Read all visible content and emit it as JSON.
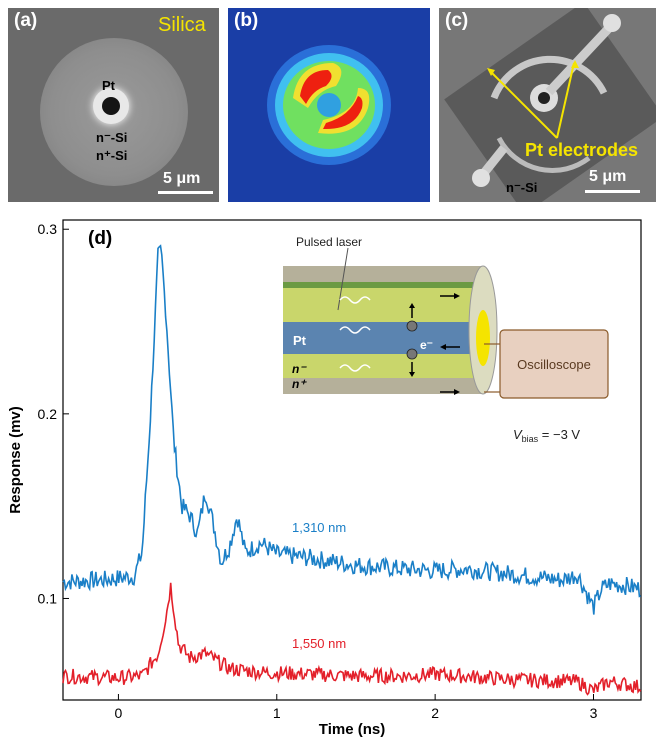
{
  "panels": {
    "a": {
      "label": "(a)",
      "material": "Silica",
      "metal": "Pt",
      "layer1": "n⁻-Si",
      "layer2": "n⁺-Si",
      "scale": "5 μm"
    },
    "b": {
      "label": "(b)"
    },
    "c": {
      "label": "(c)",
      "annotation": "Pt electrodes",
      "layer": "n⁻-Si",
      "scale": "5 μm"
    },
    "d": {
      "label": "(d)",
      "inset": {
        "laser": "Pulsed laser",
        "metal": "Pt",
        "electron": "e⁻",
        "n_minus": "n⁻",
        "n_plus": "n⁺",
        "instrument": "Oscilloscope",
        "bias_symbol": "V",
        "bias_sub": "bias",
        "bias_value": " = −3 V"
      }
    }
  },
  "colors": {
    "blue": "#1a7fc7",
    "red": "#e3202a",
    "label_yellow": "#f5e400"
  },
  "chart_data": {
    "type": "line",
    "xlabel": "Time (ns)",
    "ylabel": "Response (mv)",
    "xlim": [
      -0.35,
      3.3
    ],
    "ylim": [
      0.045,
      0.305
    ],
    "xticks": [
      "0",
      "1",
      "2",
      "3"
    ],
    "yticks": [
      "0.1",
      "0.2",
      "0.3"
    ],
    "series": [
      {
        "name": "1,310 nm",
        "color": "#1a7fc7",
        "points": [
          [
            -0.35,
            0.109
          ],
          [
            -0.1,
            0.11
          ],
          [
            0.1,
            0.112
          ],
          [
            0.15,
            0.125
          ],
          [
            0.2,
            0.195
          ],
          [
            0.25,
            0.285
          ],
          [
            0.27,
            0.288
          ],
          [
            0.3,
            0.255
          ],
          [
            0.35,
            0.185
          ],
          [
            0.4,
            0.15
          ],
          [
            0.45,
            0.145
          ],
          [
            0.5,
            0.135
          ],
          [
            0.55,
            0.158
          ],
          [
            0.6,
            0.14
          ],
          [
            0.65,
            0.12
          ],
          [
            0.7,
            0.128
          ],
          [
            0.75,
            0.145
          ],
          [
            0.8,
            0.125
          ],
          [
            0.9,
            0.13
          ],
          [
            1.0,
            0.124
          ],
          [
            1.2,
            0.122
          ],
          [
            1.5,
            0.118
          ],
          [
            1.8,
            0.116
          ],
          [
            2.0,
            0.115
          ],
          [
            2.2,
            0.116
          ],
          [
            2.4,
            0.114
          ],
          [
            2.6,
            0.112
          ],
          [
            2.8,
            0.11
          ],
          [
            2.9,
            0.113
          ],
          [
            3.0,
            0.095
          ],
          [
            3.05,
            0.105
          ],
          [
            3.1,
            0.108
          ],
          [
            3.2,
            0.107
          ],
          [
            3.3,
            0.105
          ]
        ],
        "noise": 0.005
      },
      {
        "name": "1,550 nm",
        "color": "#e3202a",
        "points": [
          [
            -0.35,
            0.058
          ],
          [
            0.0,
            0.057
          ],
          [
            0.15,
            0.058
          ],
          [
            0.25,
            0.07
          ],
          [
            0.3,
            0.09
          ],
          [
            0.33,
            0.107
          ],
          [
            0.38,
            0.075
          ],
          [
            0.45,
            0.068
          ],
          [
            0.55,
            0.07
          ],
          [
            0.7,
            0.062
          ],
          [
            0.9,
            0.06
          ],
          [
            1.2,
            0.059
          ],
          [
            1.5,
            0.058
          ],
          [
            1.8,
            0.058
          ],
          [
            2.0,
            0.059
          ],
          [
            2.5,
            0.056
          ],
          [
            2.9,
            0.055
          ],
          [
            3.0,
            0.05
          ],
          [
            3.1,
            0.055
          ],
          [
            3.3,
            0.052
          ]
        ],
        "noise": 0.004
      }
    ]
  }
}
